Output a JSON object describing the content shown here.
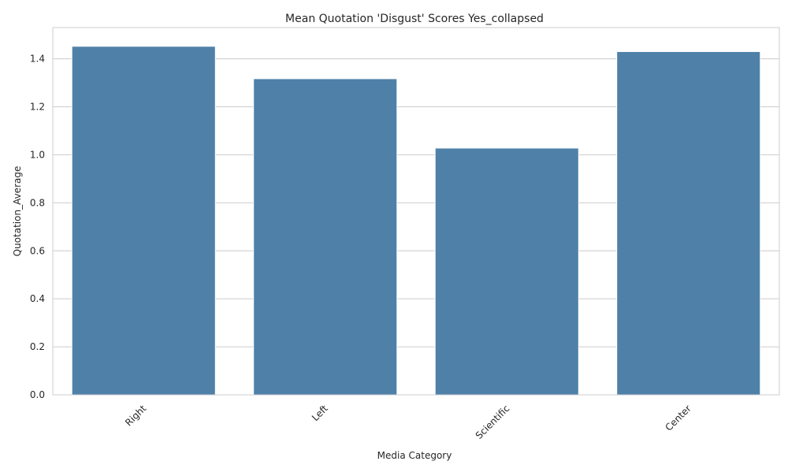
{
  "chart_data": {
    "type": "bar",
    "title": "Mean Quotation 'Disgust' Scores Yes_collapsed",
    "xlabel": "Media Category",
    "ylabel": "Quotation_Average",
    "categories": [
      "Right",
      "Left",
      "Scientific",
      "Center"
    ],
    "values": [
      1.452,
      1.317,
      1.028,
      1.43
    ],
    "ylim": [
      0,
      1.53
    ],
    "yticks": [
      "0.0",
      "0.2",
      "0.4",
      "0.6",
      "0.8",
      "1.0",
      "1.2",
      "1.4"
    ],
    "grid": true,
    "bar_color": "#4F81A8"
  }
}
